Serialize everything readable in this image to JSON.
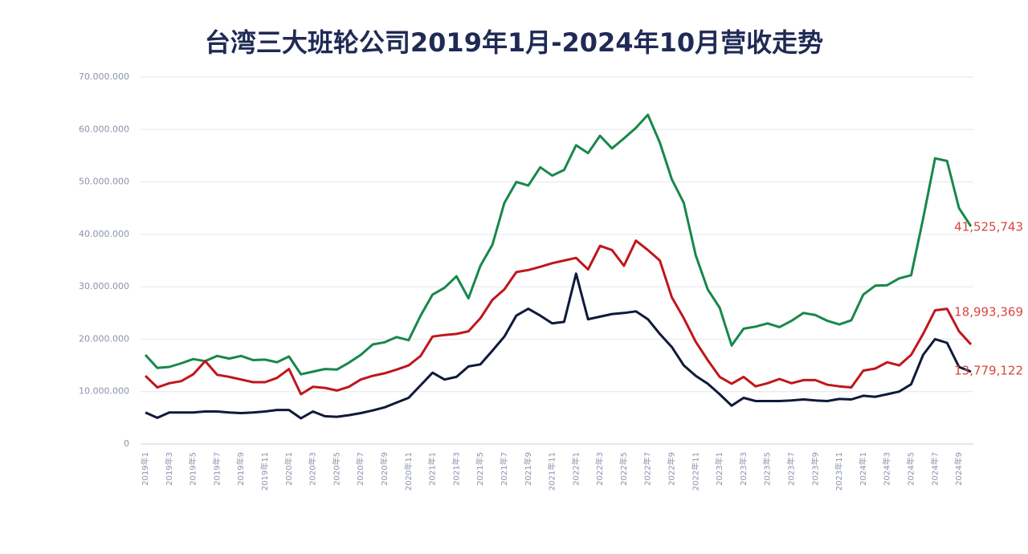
{
  "chart_data": {
    "type": "line",
    "title": "台湾三大班轮公司2019年1月-2024年10月营收走势",
    "categories": [
      "2019年1",
      null,
      "2019年3",
      null,
      "2019年5",
      null,
      "2019年7",
      null,
      "2019年9",
      null,
      "2019年11",
      null,
      "2020年1",
      null,
      "2020年3",
      null,
      "2020年5",
      null,
      "2020年7",
      null,
      "2020年9",
      null,
      "2020年11",
      null,
      "2021年1",
      null,
      "2021年3",
      null,
      "2021年5",
      null,
      "2021年7",
      null,
      "2021年9",
      null,
      "2021年11",
      null,
      "2022年1",
      null,
      "2022年3",
      null,
      "2022年5",
      null,
      "2022年7",
      null,
      "2022年9",
      null,
      "2022年11",
      null,
      "2023年1",
      null,
      "2023年3",
      null,
      "2023年5",
      null,
      "2023年7",
      null,
      "2023年9",
      null,
      "2023年11",
      null,
      "2024年1",
      null,
      "2024年3",
      null,
      "2024年5",
      null,
      "2024年7",
      null,
      "2024年9",
      null
    ],
    "series": [
      {
        "color": "#17884a",
        "label_color": "#d9473f",
        "values": [
          17000000,
          14500000,
          14700000,
          15400000,
          16200000,
          15800000,
          16800000,
          16300000,
          16800000,
          16000000,
          16100000,
          15600000,
          16700000,
          13300000,
          13800000,
          14300000,
          14200000,
          15500000,
          17000000,
          19000000,
          19400000,
          20400000,
          19800000,
          24500000,
          28500000,
          29800000,
          32000000,
          27800000,
          34000000,
          38000000,
          46000000,
          50000000,
          49300000,
          52800000,
          51200000,
          52300000,
          57000000,
          55500000,
          58800000,
          56400000,
          58300000,
          60300000,
          62800000,
          57500000,
          50500000,
          46000000,
          36000000,
          29500000,
          26000000,
          18800000,
          22000000,
          22400000,
          23000000,
          22300000,
          23500000,
          25000000,
          24600000,
          23500000,
          22800000,
          23600000,
          28500000,
          30200000,
          30300000,
          31600000,
          32200000,
          43000000,
          54500000,
          54000000,
          45000000,
          41525743
        ],
        "value_labels": [
          null,
          null,
          null,
          null,
          null,
          null,
          null,
          null,
          null,
          null,
          null,
          null,
          null,
          null,
          null,
          null,
          null,
          null,
          null,
          null,
          null,
          null,
          null,
          null,
          null,
          null,
          null,
          null,
          null,
          null,
          null,
          null,
          null,
          null,
          null,
          null,
          null,
          null,
          null,
          null,
          null,
          null,
          null,
          null,
          null,
          null,
          null,
          null,
          null,
          null,
          null,
          null,
          null,
          null,
          null,
          null,
          null,
          null,
          null,
          null,
          null,
          null,
          null,
          null,
          null,
          null,
          null,
          null,
          null,
          "41,525,743"
        ]
      },
      {
        "color": "#c0161c",
        "label_color": "#d9473f",
        "values": [
          13000000,
          10800000,
          11600000,
          12000000,
          13300000,
          15800000,
          13200000,
          12800000,
          12300000,
          11800000,
          11800000,
          12600000,
          14300000,
          9500000,
          10900000,
          10700000,
          10200000,
          10900000,
          12300000,
          13000000,
          13500000,
          14200000,
          15000000,
          16800000,
          20500000,
          20800000,
          21000000,
          21500000,
          24000000,
          27500000,
          29500000,
          32800000,
          33200000,
          33800000,
          34500000,
          35000000,
          35500000,
          33300000,
          37800000,
          37000000,
          34000000,
          38800000,
          37000000,
          35000000,
          28000000,
          24000000,
          19500000,
          16000000,
          12800000,
          11500000,
          12800000,
          11000000,
          11600000,
          12400000,
          11600000,
          12200000,
          12200000,
          11300000,
          11000000,
          10800000,
          14000000,
          14400000,
          15600000,
          15000000,
          17000000,
          21000000,
          25500000,
          25800000,
          21500000,
          18993369
        ],
        "value_labels": [
          null,
          null,
          null,
          null,
          null,
          null,
          null,
          null,
          null,
          null,
          null,
          null,
          null,
          null,
          null,
          null,
          null,
          null,
          null,
          null,
          null,
          null,
          null,
          null,
          null,
          null,
          null,
          null,
          null,
          null,
          null,
          null,
          null,
          null,
          null,
          null,
          null,
          null,
          null,
          null,
          null,
          null,
          null,
          null,
          null,
          null,
          null,
          null,
          null,
          null,
          null,
          null,
          null,
          null,
          null,
          null,
          null,
          null,
          null,
          null,
          null,
          null,
          null,
          null,
          null,
          null,
          null,
          null,
          null,
          "18,993,369"
        ]
      },
      {
        "color": "#0f1a3a",
        "label_color": "#d9473f",
        "values": [
          6000000,
          5000000,
          6000000,
          6000000,
          6000000,
          6200000,
          6200000,
          6000000,
          5900000,
          6000000,
          6200000,
          6500000,
          6500000,
          4900000,
          6200000,
          5300000,
          5200000,
          5500000,
          5900000,
          6400000,
          7000000,
          7900000,
          8800000,
          11200000,
          13600000,
          12300000,
          12800000,
          14800000,
          15200000,
          17800000,
          20500000,
          24500000,
          25800000,
          24500000,
          23000000,
          23300000,
          32500000,
          23800000,
          24300000,
          24800000,
          25000000,
          25300000,
          23800000,
          21000000,
          18500000,
          15000000,
          13000000,
          11500000,
          9500000,
          7300000,
          8800000,
          8200000,
          8200000,
          8200000,
          8300000,
          8500000,
          8300000,
          8200000,
          8600000,
          8500000,
          9200000,
          9000000,
          9500000,
          10000000,
          11400000,
          17000000,
          20000000,
          19300000,
          14700000,
          13779122
        ],
        "value_labels": [
          null,
          null,
          null,
          null,
          null,
          null,
          null,
          null,
          null,
          null,
          null,
          null,
          null,
          null,
          null,
          null,
          null,
          null,
          null,
          null,
          null,
          null,
          null,
          null,
          null,
          null,
          null,
          null,
          null,
          null,
          null,
          null,
          null,
          null,
          null,
          null,
          null,
          null,
          null,
          null,
          null,
          null,
          null,
          null,
          null,
          null,
          null,
          null,
          null,
          null,
          null,
          null,
          null,
          null,
          null,
          null,
          null,
          null,
          null,
          null,
          null,
          null,
          null,
          null,
          null,
          null,
          null,
          null,
          null,
          "13,779,122"
        ]
      }
    ],
    "ylim": [
      0,
      70000000
    ],
    "yticks": [
      0,
      {
        "value": 10000000,
        "label": "10.000.000"
      },
      {
        "value": 20000000,
        "label": "20.000.000"
      },
      {
        "value": 30000000,
        "label": "30.000.000"
      },
      {
        "value": 40000000,
        "label": "40.000.000"
      },
      {
        "value": 50000000,
        "label": "50.000.000"
      },
      {
        "value": 60000000,
        "label": "60.000.000"
      },
      {
        "value": 70000000,
        "label": "70.000.000"
      }
    ],
    "grid": true
  }
}
